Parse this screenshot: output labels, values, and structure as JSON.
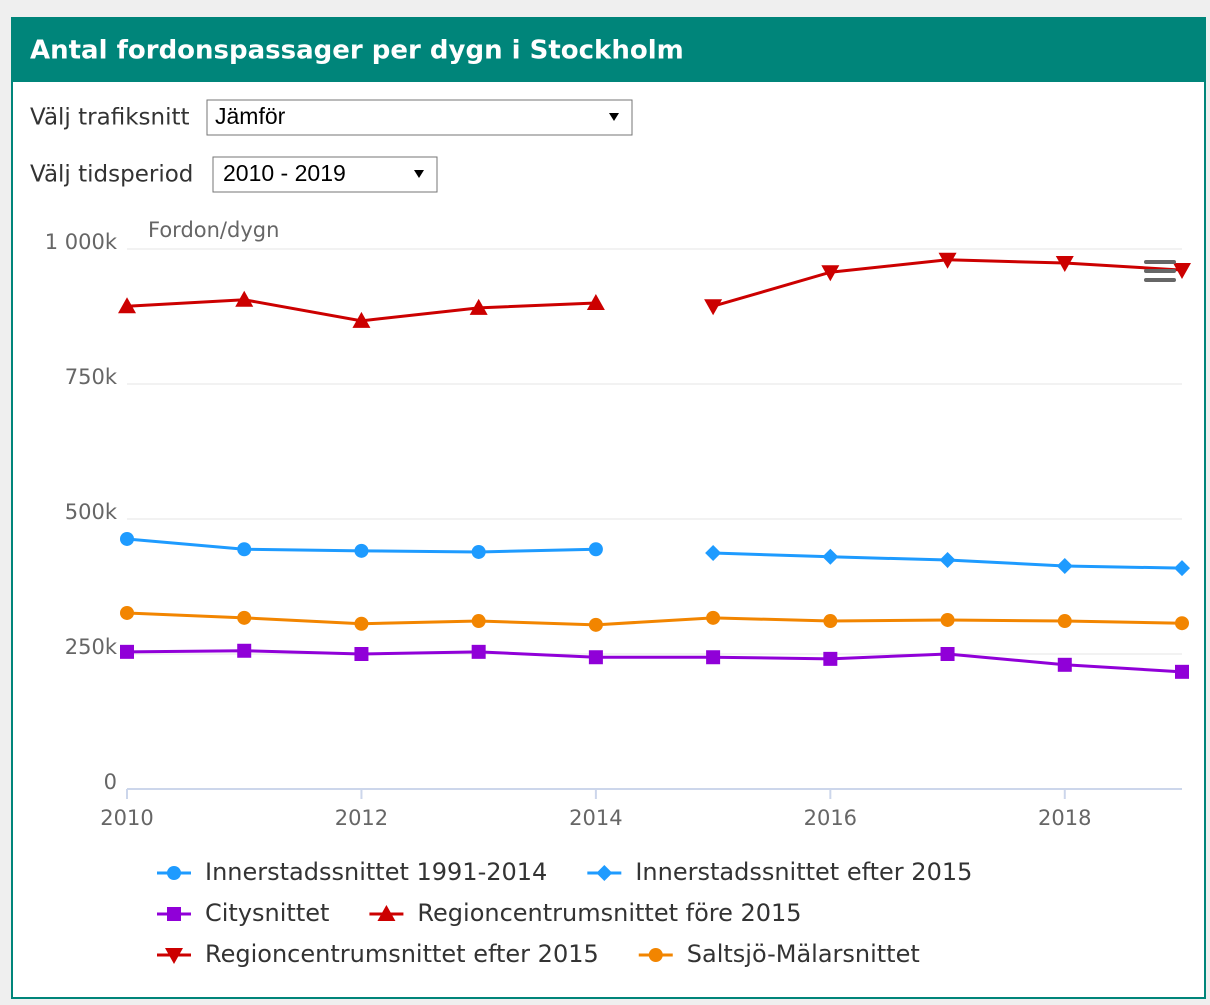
{
  "header": {
    "title": "Antal fordonspassager per dygn i Stockholm"
  },
  "controls": [
    {
      "label": "Välj trafiksnitt",
      "value": "Jämför"
    },
    {
      "label": "Välj tidsperiod",
      "value": "2010 - 2019"
    }
  ],
  "chart_data": {
    "type": "line",
    "y_label": "Fordon/dygn",
    "x": [
      2010,
      2011,
      2012,
      2013,
      2014,
      2015,
      2016,
      2017,
      2018,
      2019
    ],
    "xlim": [
      2010,
      2019
    ],
    "xticks": [
      2010,
      2012,
      2014,
      2016,
      2018
    ],
    "ylim": [
      0,
      1000000
    ],
    "yticks": [
      0,
      {
        "value": 250000,
        "label": "250k"
      },
      {
        "value": 500000,
        "label": "500k"
      },
      {
        "value": 750000,
        "label": "750k"
      },
      {
        "value": 1000000,
        "label": "1 000k"
      }
    ],
    "grid": true,
    "series": [
      {
        "name": "Innerstadssnittet 1991-2014",
        "color": "#1e9bff",
        "marker": "circle",
        "values": [
          463000,
          444000,
          441000,
          439000,
          444000,
          null,
          null,
          null,
          null,
          null
        ]
      },
      {
        "name": "Innerstadssnittet efter 2015",
        "color": "#1e9bff",
        "marker": "diamond",
        "values": [
          null,
          null,
          null,
          null,
          null,
          437000,
          430000,
          424000,
          413000,
          409000
        ]
      },
      {
        "name": "Citysnittet",
        "color": "#9000d8",
        "marker": "square",
        "values": [
          254000,
          256000,
          250000,
          254000,
          244000,
          244000,
          241000,
          250000,
          230000,
          217000
        ]
      },
      {
        "name": "Regioncentrumsnittet före 2015",
        "color": "#cc0000",
        "marker": "triangle",
        "values": [
          894000,
          906000,
          867000,
          891000,
          900000,
          null,
          null,
          null,
          null,
          null
        ]
      },
      {
        "name": "Regioncentrumsnittet efter 2015",
        "color": "#cc0000",
        "marker": "triangle-down",
        "values": [
          null,
          null,
          null,
          null,
          null,
          894000,
          957000,
          980000,
          974000,
          961000
        ]
      },
      {
        "name": "Saltsjö-Mälarsnittet",
        "color": "#f28500",
        "marker": "circle",
        "values": [
          326000,
          317000,
          306000,
          311000,
          304000,
          317000,
          311000,
          313000,
          311000,
          307000
        ]
      }
    ]
  }
}
